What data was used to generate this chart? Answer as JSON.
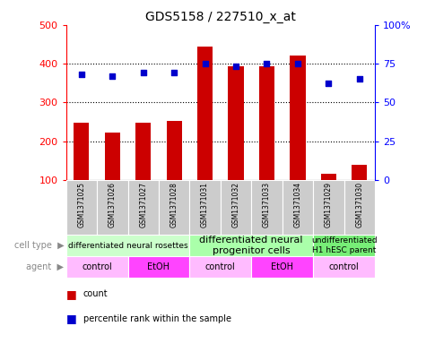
{
  "title": "GDS5158 / 227510_x_at",
  "samples": [
    "GSM1371025",
    "GSM1371026",
    "GSM1371027",
    "GSM1371028",
    "GSM1371031",
    "GSM1371032",
    "GSM1371033",
    "GSM1371034",
    "GSM1371029",
    "GSM1371030"
  ],
  "counts": [
    248,
    222,
    248,
    253,
    443,
    393,
    393,
    421,
    117,
    140
  ],
  "percentile_ranks": [
    68,
    67,
    69,
    69,
    75,
    73,
    75,
    75,
    62,
    65
  ],
  "ylim_left": [
    100,
    500
  ],
  "ylim_right": [
    0,
    100
  ],
  "yticks_left": [
    100,
    200,
    300,
    400,
    500
  ],
  "yticks_right": [
    0,
    25,
    50,
    75,
    100
  ],
  "ytick_labels_right": [
    "0",
    "25",
    "50",
    "75",
    "100%"
  ],
  "bar_color": "#cc0000",
  "scatter_color": "#0000cc",
  "cell_type_groups": [
    {
      "label": "differentiated neural rosettes",
      "start": 0,
      "end": 4,
      "color": "#ccffcc",
      "fontsize": 6.5
    },
    {
      "label": "differentiated neural\nprogenitor cells",
      "start": 4,
      "end": 8,
      "color": "#aaffaa",
      "fontsize": 8
    },
    {
      "label": "undifferentiated\nH1 hESC parent",
      "start": 8,
      "end": 10,
      "color": "#77ee77",
      "fontsize": 6.5
    }
  ],
  "agent_groups": [
    {
      "label": "control",
      "start": 0,
      "end": 2,
      "color": "#ffbbff"
    },
    {
      "label": "EtOH",
      "start": 2,
      "end": 4,
      "color": "#ff44ff"
    },
    {
      "label": "control",
      "start": 4,
      "end": 6,
      "color": "#ffbbff"
    },
    {
      "label": "EtOH",
      "start": 6,
      "end": 8,
      "color": "#ff44ff"
    },
    {
      "label": "control",
      "start": 8,
      "end": 10,
      "color": "#ffbbff"
    }
  ],
  "bar_width": 0.5,
  "sample_bg_color": "#cccccc",
  "grid_dotted_ticks": [
    200,
    300,
    400
  ],
  "legend_items": [
    {
      "color": "#cc0000",
      "marker": "s",
      "label": "count"
    },
    {
      "color": "#0000cc",
      "marker": "s",
      "label": "percentile rank within the sample"
    }
  ]
}
